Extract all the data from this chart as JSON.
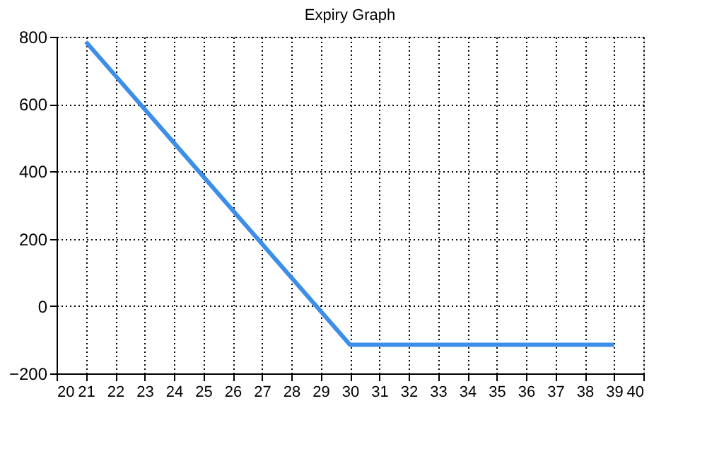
{
  "chart_data": {
    "type": "line",
    "title": "Expiry Graph",
    "x": [
      21,
      30,
      39
    ],
    "series": [
      {
        "color": "#3d8ee8",
        "values": [
          785,
          -115,
          -115
        ]
      }
    ],
    "xlim": [
      20,
      40
    ],
    "xticks": [
      20,
      21,
      22,
      23,
      24,
      25,
      26,
      27,
      28,
      29,
      30,
      31,
      32,
      33,
      34,
      35,
      36,
      37,
      38,
      39,
      40
    ],
    "ylim": [
      -200,
      800
    ],
    "yticks": [
      -200,
      0,
      200,
      400,
      600,
      800
    ],
    "grid": true,
    "legend": false,
    "marker": "none",
    "line_style": "solid"
  }
}
